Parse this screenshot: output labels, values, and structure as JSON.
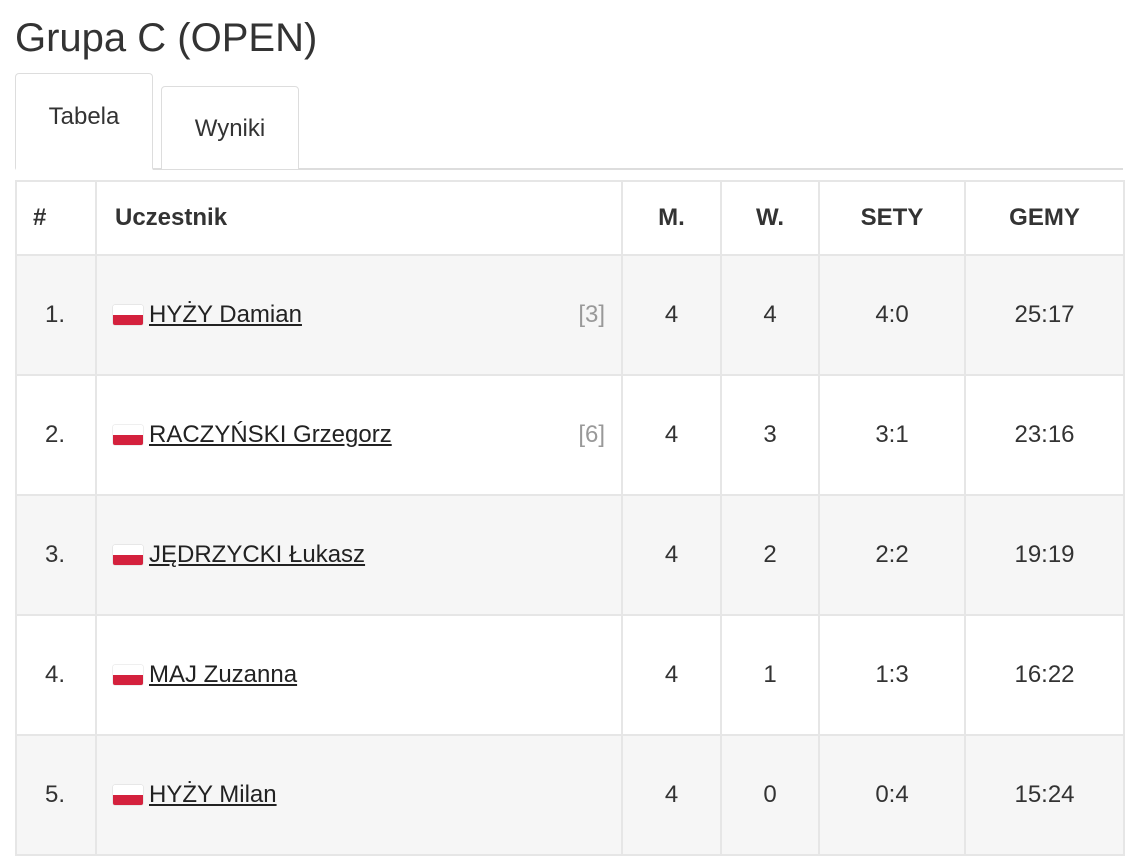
{
  "title": "Grupa C (OPEN)",
  "tabs": [
    "Tabela",
    "Wyniki"
  ],
  "table": {
    "headers": [
      "#",
      "Uczestnik",
      "M.",
      "W.",
      "SETY",
      "GEMY"
    ],
    "rows": [
      {
        "rank": "1.",
        "name": "HYŻY Damian",
        "seed": "[3]",
        "m": "4",
        "w": "4",
        "sety": "4:0",
        "gemy": "25:17"
      },
      {
        "rank": "2.",
        "name": "RACZYŃSKI Grzegorz",
        "seed": "[6]",
        "m": "4",
        "w": "3",
        "sety": "3:1",
        "gemy": "23:16"
      },
      {
        "rank": "3.",
        "name": "JĘDRZYCKI Łukasz",
        "m": "4",
        "w": "2",
        "sety": "2:2",
        "gemy": "19:19"
      },
      {
        "rank": "4.",
        "name": "MAJ Zuzanna",
        "m": "4",
        "w": "1",
        "sety": "1:3",
        "gemy": "16:22"
      },
      {
        "rank": "5.",
        "name": "HYŻY Milan",
        "m": "4",
        "w": "0",
        "sety": "0:4",
        "gemy": "15:24"
      }
    ]
  }
}
